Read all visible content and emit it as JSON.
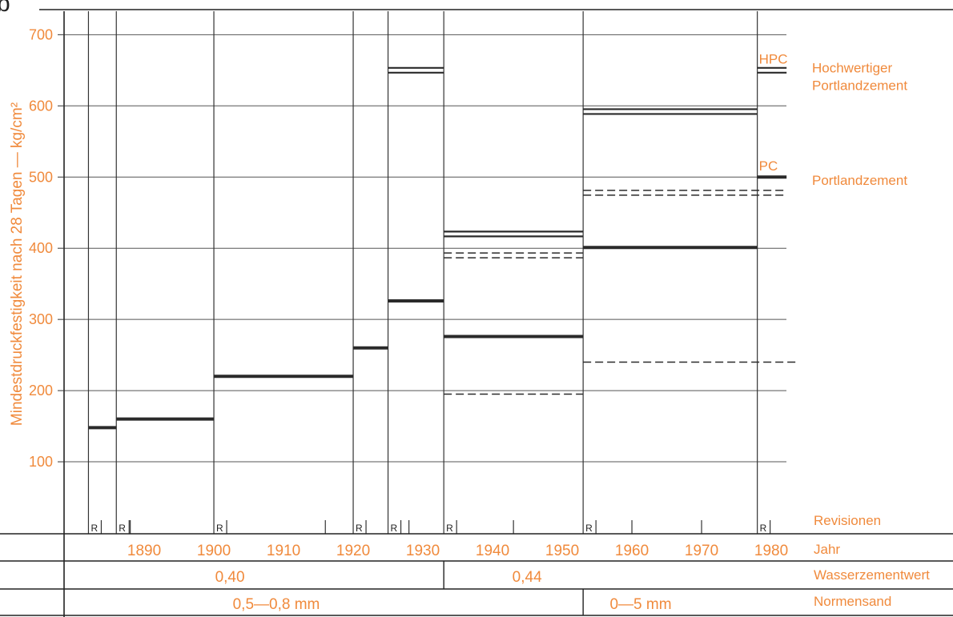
{
  "colors": {
    "label": "#f08a3c",
    "line": "#2a2a2a",
    "grid": "#555555"
  },
  "chart_data": {
    "type": "line",
    "panel_label": "b",
    "ylabel": "Mindestdruckfestigkeit nach 28 Tagen — kg/cm²",
    "ylim": [
      0,
      720
    ],
    "yticks": [
      100,
      200,
      300,
      400,
      500,
      600,
      700
    ],
    "xlim": [
      1878.5,
      1982.2
    ],
    "xticks": [
      1890,
      1900,
      1910,
      1920,
      1930,
      1940,
      1950,
      1960,
      1970,
      1980
    ],
    "revisions": [
      1882,
      1886,
      1900,
      1920,
      1925,
      1933,
      1953,
      1978
    ],
    "revision_marker": "R",
    "minor_ticks": [
      1888,
      1916,
      1928,
      1943,
      1960,
      1970
    ],
    "row_labels": {
      "revisions": "Revisionen",
      "year": "Jahr",
      "wz": "Wasserzementwert",
      "sand": "Normensand"
    },
    "wz_values": [
      {
        "from": 1878.5,
        "to": 1933,
        "label": "0,40"
      },
      {
        "from": 1933,
        "to": 1982.2,
        "label": "0,44"
      }
    ],
    "sand_values": [
      {
        "from": 1878.5,
        "to": 1953,
        "label": "0,5—0,8 mm"
      },
      {
        "from": 1953,
        "to": 1982.2,
        "label": "0—5 mm"
      }
    ],
    "series": [
      {
        "style": "solid",
        "segments": [
          {
            "from": 1882,
            "to": 1886,
            "value": 148
          },
          {
            "from": 1886,
            "to": 1900,
            "value": 160
          },
          {
            "from": 1900,
            "to": 1920,
            "value": 220
          },
          {
            "from": 1920,
            "to": 1925,
            "value": 260
          },
          {
            "from": 1925,
            "to": 1933,
            "value": 326
          },
          {
            "from": 1933,
            "to": 1953,
            "value": 276
          },
          {
            "from": 1953,
            "to": 1978,
            "value": 401
          },
          {
            "from": 1978,
            "to": 1982.2,
            "value": 500
          }
        ]
      },
      {
        "style": "double",
        "segments": [
          {
            "from": 1925,
            "to": 1933,
            "value": 650
          },
          {
            "from": 1933,
            "to": 1953,
            "value": 420
          },
          {
            "from": 1953,
            "to": 1978,
            "value": 592
          },
          {
            "from": 1978,
            "to": 1982.2,
            "value": 650
          }
        ]
      },
      {
        "style": "dashed",
        "segments": [
          {
            "from": 1933,
            "to": 1953,
            "value": 195
          },
          {
            "from": 1953,
            "to": 1983.9,
            "value": 240
          }
        ]
      },
      {
        "style": "dashed-double",
        "segments": [
          {
            "from": 1933,
            "to": 1953,
            "value": 390
          },
          {
            "from": 1953,
            "to": 1982.2,
            "value": 478
          }
        ]
      }
    ],
    "annotations": [
      {
        "code": "HPC",
        "value": 665,
        "name_lines": [
          "Hochwertiger",
          "Portlandzement"
        ]
      },
      {
        "code": "PC",
        "value": 515,
        "name_lines": [
          "Portlandzement"
        ]
      }
    ]
  }
}
